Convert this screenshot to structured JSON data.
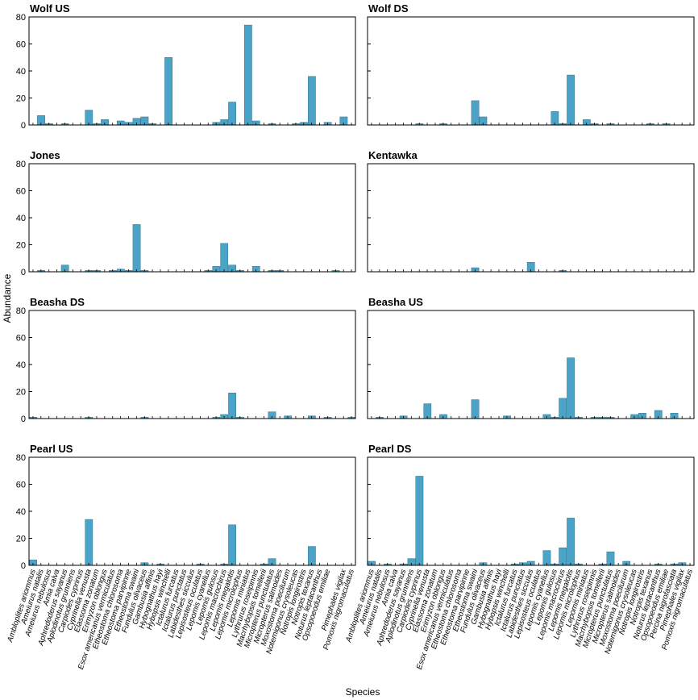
{
  "chart_data": {
    "type": "bar",
    "title": "",
    "xlabel": "Species",
    "ylabel": "Abundance",
    "ylim": [
      0,
      80
    ],
    "yticks": [
      0,
      20,
      40,
      60,
      80
    ],
    "grid": false,
    "bar_color": "#4ba3c7",
    "categories": [
      "Ambloplites ariommus",
      "Ameiurus natalis",
      "Ameiurus nebulosus",
      "Amia calva",
      "Aphredoderus sayanus",
      "Aplodinotus grunniens",
      "Carpiodes cyprinus",
      "Cyprinella venusta",
      "Elassoma zonatum",
      "Erimyzon oblongus",
      "Esox americanus vermiculatus",
      "Etheostoma chlorosoma",
      "Etheostoma parvipinne",
      "Etheostoma swaini",
      "Fundulus olivaceus",
      "Gambusia affinis",
      "Hybognathus hayi",
      "Hybopsis winchelli",
      "Ictalurus furcatus",
      "Ictalurus punctatus",
      "Labidesthes sicculus",
      "Lepisosteus oculatus",
      "Lepomis cyanellus",
      "Lepomis gulosus",
      "Lepomis macrochirus",
      "Lepomis megalotis",
      "Lepomis microlophus",
      "Lepomis miniatus",
      "Lythrurus roseipinnis",
      "Macrhybopsis tomellerii",
      "Micropterus punctulatus",
      "Micropterus salmoides",
      "Moxostoma poecilurum",
      "Notemigonus crysoleucas",
      "Notropis longirostris",
      "Notropis texanus",
      "Noturus leptacanthus",
      "Opsopoeodus emiliae",
      "Percina nigrofasciata",
      "Pimephales vigilax",
      "Pomoxis nigromaculatus"
    ],
    "label_indices_left": [
      0,
      1,
      2,
      3,
      4,
      5,
      6,
      7,
      8,
      9,
      10,
      11,
      12,
      13,
      14,
      15,
      16,
      17,
      18,
      19,
      20,
      21,
      22,
      23,
      24,
      25,
      26,
      27,
      28,
      29,
      30,
      31,
      32,
      33,
      34,
      35,
      36,
      37,
      39,
      40
    ],
    "label_indices_right": [
      0,
      1,
      2,
      3,
      4,
      5,
      6,
      7,
      8,
      9,
      10,
      11,
      12,
      13,
      14,
      15,
      16,
      17,
      18,
      19,
      20,
      21,
      22,
      23,
      24,
      25,
      26,
      27,
      28,
      29,
      30,
      31,
      32,
      33,
      34,
      35,
      36,
      37,
      38,
      39,
      40
    ],
    "panels": [
      {
        "name": "Wolf US",
        "values": [
          0,
          7,
          1,
          0,
          1,
          0,
          0,
          11,
          1,
          4,
          0,
          3,
          2,
          5,
          6,
          1,
          0,
          50,
          0,
          0,
          0,
          0,
          0,
          2,
          4,
          17,
          0,
          74,
          3,
          0,
          1,
          0,
          0,
          1,
          2,
          36,
          0,
          2,
          0,
          6,
          0
        ]
      },
      {
        "name": "Wolf DS",
        "values": [
          0,
          0,
          0,
          0,
          0,
          0,
          1,
          0,
          0,
          1,
          0,
          0,
          0,
          18,
          6,
          0,
          0,
          0,
          0,
          0,
          0,
          0,
          0,
          10,
          1,
          37,
          0,
          4,
          1,
          0,
          1,
          0,
          0,
          0,
          0,
          1,
          0,
          1,
          0,
          0,
          0
        ]
      },
      {
        "name": "Jones",
        "values": [
          0,
          1,
          0,
          0,
          5,
          0,
          0,
          1,
          1,
          0,
          1,
          2,
          1,
          35,
          1,
          0,
          0,
          0,
          0,
          0,
          0,
          0,
          1,
          4,
          21,
          5,
          1,
          0,
          4,
          0,
          1,
          1,
          0,
          0,
          0,
          0,
          0,
          0,
          1,
          0,
          0
        ]
      },
      {
        "name": "Kentawka",
        "values": [
          0,
          0,
          0,
          0,
          0,
          0,
          0,
          0,
          0,
          0,
          0,
          0,
          0,
          3,
          0,
          0,
          0,
          0,
          0,
          0,
          7,
          0,
          0,
          0,
          1,
          0,
          0,
          0,
          0,
          0,
          0,
          0,
          0,
          0,
          0,
          0,
          0,
          0,
          0,
          0,
          0
        ]
      },
      {
        "name": "Beasha DS",
        "values": [
          1,
          0,
          0,
          0,
          0,
          0,
          0,
          1,
          0,
          0,
          0,
          0,
          0,
          0,
          1,
          0,
          0,
          0,
          0,
          0,
          0,
          0,
          0,
          1,
          3,
          19,
          1,
          0,
          0,
          0,
          5,
          0,
          2,
          0,
          0,
          2,
          0,
          1,
          0,
          0,
          1
        ]
      },
      {
        "name": "Beasha US",
        "values": [
          0,
          1,
          0,
          0,
          2,
          0,
          0,
          11,
          0,
          3,
          0,
          0,
          0,
          14,
          0,
          0,
          0,
          2,
          0,
          0,
          0,
          0,
          3,
          1,
          15,
          45,
          1,
          0,
          1,
          1,
          1,
          0,
          0,
          3,
          4,
          0,
          6,
          0,
          4,
          0,
          0
        ]
      },
      {
        "name": "Pearl US",
        "values": [
          4,
          0,
          0,
          0,
          0,
          0,
          0,
          34,
          0,
          0,
          0,
          0,
          0,
          0,
          2,
          0,
          1,
          0,
          0,
          0,
          0,
          1,
          0,
          0,
          1,
          30,
          0,
          0,
          0,
          1,
          5,
          0,
          0,
          0,
          0,
          14,
          0,
          0,
          0,
          0,
          0
        ]
      },
      {
        "name": "Pearl DS",
        "values": [
          3,
          0,
          1,
          0,
          1,
          5,
          66,
          0,
          0,
          0,
          0,
          0,
          0,
          0,
          2,
          0,
          0,
          0,
          1,
          2,
          3,
          0,
          11,
          1,
          13,
          35,
          1,
          0,
          0,
          1,
          10,
          0,
          3,
          0,
          0,
          0,
          1,
          0,
          1,
          2,
          0
        ]
      }
    ]
  }
}
